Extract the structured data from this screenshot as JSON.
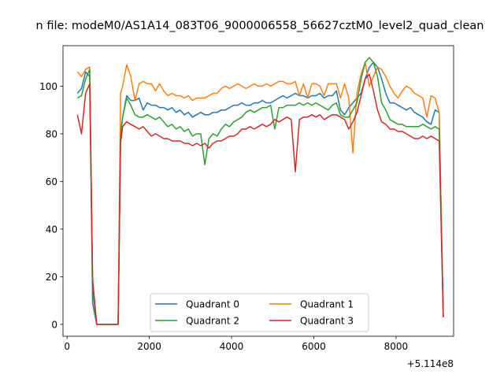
{
  "chart_data": {
    "type": "line",
    "title": "n file: modeM0/AS1A14_083T06_9000006558_56627cztM0_level2_quad_clean",
    "xlabel": "",
    "ylabel": "",
    "x_offset_label": "+5.114e8",
    "xlim": [
      -100,
      9400
    ],
    "ylim": [
      -5,
      117
    ],
    "xticks": [
      0,
      2000,
      4000,
      6000,
      8000
    ],
    "xtick_labels": [
      "0",
      "2000",
      "4000",
      "6000",
      "8000"
    ],
    "yticks": [
      0,
      20,
      40,
      60,
      80,
      100
    ],
    "ytick_labels": [
      "0",
      "20",
      "40",
      "60",
      "80",
      "100"
    ],
    "grid": false,
    "legend": {
      "placement": "lower center",
      "columns": 2
    },
    "x": [
      250,
      350,
      450,
      550,
      620,
      720,
      1000,
      1240,
      1300,
      1350,
      1450,
      1550,
      1650,
      1750,
      1850,
      1950,
      2050,
      2150,
      2250,
      2350,
      2450,
      2550,
      2650,
      2750,
      2850,
      2950,
      3050,
      3150,
      3250,
      3350,
      3450,
      3550,
      3650,
      3750,
      3850,
      3950,
      4050,
      4150,
      4250,
      4350,
      4450,
      4550,
      4650,
      4750,
      4850,
      4950,
      5050,
      5150,
      5250,
      5350,
      5450,
      5550,
      5650,
      5750,
      5850,
      5950,
      6050,
      6150,
      6250,
      6350,
      6450,
      6550,
      6650,
      6750,
      6850,
      6950,
      7050,
      7150,
      7250,
      7350,
      7450,
      7550,
      7650,
      7750,
      7850,
      7950,
      8050,
      8150,
      8250,
      8350,
      8450,
      8550,
      8650,
      8750,
      8850,
      8950,
      9050,
      9150
    ],
    "series": [
      {
        "name": "Quadrant 0",
        "color": "#1f77b4",
        "values": [
          97,
          99,
          106,
          104,
          9,
          0,
          0,
          0,
          80,
          87,
          96,
          94,
          94,
          95,
          90,
          93,
          92,
          92,
          91,
          91,
          90,
          91,
          89,
          90,
          88,
          89,
          87,
          88,
          89,
          88,
          88,
          89,
          89,
          90,
          90,
          91,
          92,
          92,
          93,
          92,
          92,
          93,
          93,
          94,
          93,
          93,
          94,
          95,
          96,
          95,
          96,
          97,
          96,
          96,
          95,
          96,
          96,
          97,
          95,
          96,
          96,
          98,
          90,
          88,
          91,
          93,
          95,
          97,
          103,
          108,
          110,
          108,
          103,
          97,
          93,
          93,
          92,
          91,
          90,
          91,
          89,
          88,
          87,
          85,
          84,
          90,
          89,
          3
        ]
      },
      {
        "name": "Quadrant 1",
        "color": "#ff7f0e",
        "values": [
          106,
          104,
          107,
          108,
          18,
          0,
          0,
          0,
          97,
          100,
          109,
          104,
          94,
          101,
          102,
          101,
          101,
          98,
          101,
          98,
          96,
          97,
          96,
          96,
          95,
          96,
          94,
          95,
          95,
          95,
          96,
          97,
          97,
          99,
          100,
          99,
          100,
          101,
          100,
          99,
          100,
          101,
          100,
          100,
          101,
          100,
          101,
          102,
          102,
          101,
          101,
          102,
          96,
          101,
          95,
          101,
          101,
          100,
          96,
          101,
          101,
          101,
          95,
          101,
          95,
          72,
          97,
          105,
          110,
          100,
          104,
          108,
          107,
          104,
          100,
          97,
          95,
          98,
          100,
          99,
          97,
          96,
          95,
          87,
          96,
          95,
          89,
          3
        ]
      },
      {
        "name": "Quadrant 2",
        "color": "#2ca02c",
        "values": [
          95,
          96,
          103,
          107,
          15,
          0,
          0,
          0,
          78,
          87,
          95,
          92,
          88,
          87,
          87,
          88,
          87,
          86,
          87,
          85,
          83,
          84,
          82,
          83,
          81,
          82,
          79,
          80,
          80,
          67,
          78,
          80,
          79,
          82,
          84,
          83,
          85,
          86,
          87,
          89,
          90,
          89,
          90,
          91,
          91,
          92,
          82,
          91,
          91,
          92,
          92,
          92,
          93,
          92,
          93,
          92,
          93,
          92,
          91,
          90,
          92,
          93,
          88,
          87,
          87,
          90,
          93,
          103,
          110,
          112,
          110,
          104,
          93,
          90,
          86,
          85,
          84,
          84,
          83,
          83,
          83,
          83,
          84,
          83,
          82,
          83,
          82,
          3
        ]
      },
      {
        "name": "Quadrant 3",
        "color": "#d62728",
        "values": [
          88,
          80,
          97,
          101,
          19,
          0,
          0,
          0,
          76,
          83,
          85,
          84,
          83,
          82,
          83,
          81,
          79,
          80,
          79,
          78,
          78,
          77,
          77,
          77,
          76,
          76,
          75,
          76,
          75,
          76,
          74,
          76,
          77,
          77,
          78,
          79,
          79,
          80,
          82,
          82,
          83,
          82,
          83,
          84,
          83,
          84,
          86,
          85,
          86,
          87,
          86,
          64,
          86,
          87,
          87,
          88,
          87,
          88,
          86,
          87,
          88,
          88,
          87,
          86,
          82,
          85,
          89,
          96,
          103,
          105,
          98,
          90,
          85,
          84,
          82,
          82,
          81,
          81,
          80,
          79,
          78,
          78,
          79,
          78,
          79,
          78,
          77,
          3
        ]
      }
    ]
  }
}
